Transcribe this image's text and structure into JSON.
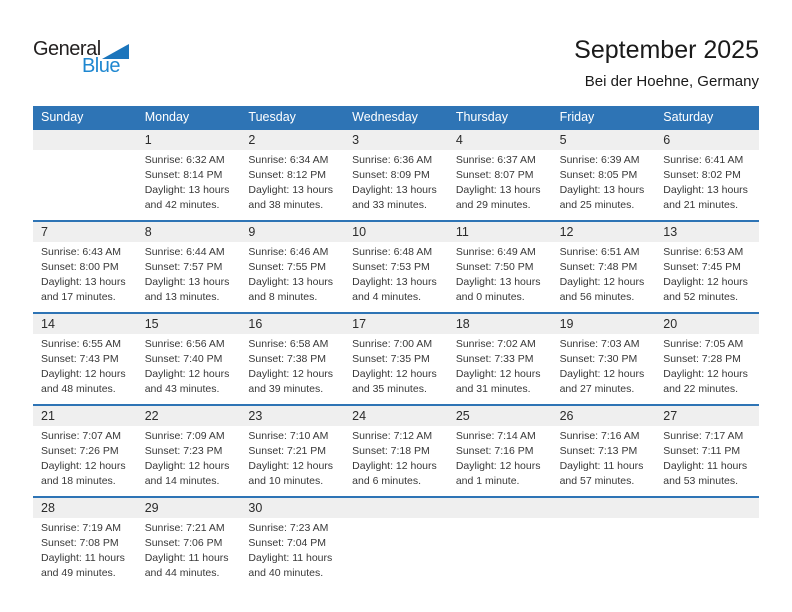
{
  "logo": {
    "general": "General",
    "blue": "Blue"
  },
  "header": {
    "title": "September 2025",
    "subtitle": "Bei der Hoehne, Germany"
  },
  "colors": {
    "header_blue": "#2e74b5",
    "number_band_gray": "#efefef",
    "logo_triangle_blue": "#1b75bc",
    "logo_text_blue": "#1e87d0",
    "detail_text": "#383838"
  },
  "weekdays": [
    "Sunday",
    "Monday",
    "Tuesday",
    "Wednesday",
    "Thursday",
    "Friday",
    "Saturday"
  ],
  "weeks": [
    [
      {
        "day": "",
        "lines": []
      },
      {
        "day": "1",
        "lines": [
          "Sunrise: 6:32 AM",
          "Sunset: 8:14 PM",
          "Daylight: 13 hours",
          "and 42 minutes."
        ]
      },
      {
        "day": "2",
        "lines": [
          "Sunrise: 6:34 AM",
          "Sunset: 8:12 PM",
          "Daylight: 13 hours",
          "and 38 minutes."
        ]
      },
      {
        "day": "3",
        "lines": [
          "Sunrise: 6:36 AM",
          "Sunset: 8:09 PM",
          "Daylight: 13 hours",
          "and 33 minutes."
        ]
      },
      {
        "day": "4",
        "lines": [
          "Sunrise: 6:37 AM",
          "Sunset: 8:07 PM",
          "Daylight: 13 hours",
          "and 29 minutes."
        ]
      },
      {
        "day": "5",
        "lines": [
          "Sunrise: 6:39 AM",
          "Sunset: 8:05 PM",
          "Daylight: 13 hours",
          "and 25 minutes."
        ]
      },
      {
        "day": "6",
        "lines": [
          "Sunrise: 6:41 AM",
          "Sunset: 8:02 PM",
          "Daylight: 13 hours",
          "and 21 minutes."
        ]
      }
    ],
    [
      {
        "day": "7",
        "lines": [
          "Sunrise: 6:43 AM",
          "Sunset: 8:00 PM",
          "Daylight: 13 hours",
          "and 17 minutes."
        ]
      },
      {
        "day": "8",
        "lines": [
          "Sunrise: 6:44 AM",
          "Sunset: 7:57 PM",
          "Daylight: 13 hours",
          "and 13 minutes."
        ]
      },
      {
        "day": "9",
        "lines": [
          "Sunrise: 6:46 AM",
          "Sunset: 7:55 PM",
          "Daylight: 13 hours",
          "and 8 minutes."
        ]
      },
      {
        "day": "10",
        "lines": [
          "Sunrise: 6:48 AM",
          "Sunset: 7:53 PM",
          "Daylight: 13 hours",
          "and 4 minutes."
        ]
      },
      {
        "day": "11",
        "lines": [
          "Sunrise: 6:49 AM",
          "Sunset: 7:50 PM",
          "Daylight: 13 hours",
          "and 0 minutes."
        ]
      },
      {
        "day": "12",
        "lines": [
          "Sunrise: 6:51 AM",
          "Sunset: 7:48 PM",
          "Daylight: 12 hours",
          "and 56 minutes."
        ]
      },
      {
        "day": "13",
        "lines": [
          "Sunrise: 6:53 AM",
          "Sunset: 7:45 PM",
          "Daylight: 12 hours",
          "and 52 minutes."
        ]
      }
    ],
    [
      {
        "day": "14",
        "lines": [
          "Sunrise: 6:55 AM",
          "Sunset: 7:43 PM",
          "Daylight: 12 hours",
          "and 48 minutes."
        ]
      },
      {
        "day": "15",
        "lines": [
          "Sunrise: 6:56 AM",
          "Sunset: 7:40 PM",
          "Daylight: 12 hours",
          "and 43 minutes."
        ]
      },
      {
        "day": "16",
        "lines": [
          "Sunrise: 6:58 AM",
          "Sunset: 7:38 PM",
          "Daylight: 12 hours",
          "and 39 minutes."
        ]
      },
      {
        "day": "17",
        "lines": [
          "Sunrise: 7:00 AM",
          "Sunset: 7:35 PM",
          "Daylight: 12 hours",
          "and 35 minutes."
        ]
      },
      {
        "day": "18",
        "lines": [
          "Sunrise: 7:02 AM",
          "Sunset: 7:33 PM",
          "Daylight: 12 hours",
          "and 31 minutes."
        ]
      },
      {
        "day": "19",
        "lines": [
          "Sunrise: 7:03 AM",
          "Sunset: 7:30 PM",
          "Daylight: 12 hours",
          "and 27 minutes."
        ]
      },
      {
        "day": "20",
        "lines": [
          "Sunrise: 7:05 AM",
          "Sunset: 7:28 PM",
          "Daylight: 12 hours",
          "and 22 minutes."
        ]
      }
    ],
    [
      {
        "day": "21",
        "lines": [
          "Sunrise: 7:07 AM",
          "Sunset: 7:26 PM",
          "Daylight: 12 hours",
          "and 18 minutes."
        ]
      },
      {
        "day": "22",
        "lines": [
          "Sunrise: 7:09 AM",
          "Sunset: 7:23 PM",
          "Daylight: 12 hours",
          "and 14 minutes."
        ]
      },
      {
        "day": "23",
        "lines": [
          "Sunrise: 7:10 AM",
          "Sunset: 7:21 PM",
          "Daylight: 12 hours",
          "and 10 minutes."
        ]
      },
      {
        "day": "24",
        "lines": [
          "Sunrise: 7:12 AM",
          "Sunset: 7:18 PM",
          "Daylight: 12 hours",
          "and 6 minutes."
        ]
      },
      {
        "day": "25",
        "lines": [
          "Sunrise: 7:14 AM",
          "Sunset: 7:16 PM",
          "Daylight: 12 hours",
          "and 1 minute."
        ]
      },
      {
        "day": "26",
        "lines": [
          "Sunrise: 7:16 AM",
          "Sunset: 7:13 PM",
          "Daylight: 11 hours",
          "and 57 minutes."
        ]
      },
      {
        "day": "27",
        "lines": [
          "Sunrise: 7:17 AM",
          "Sunset: 7:11 PM",
          "Daylight: 11 hours",
          "and 53 minutes."
        ]
      }
    ],
    [
      {
        "day": "28",
        "lines": [
          "Sunrise: 7:19 AM",
          "Sunset: 7:08 PM",
          "Daylight: 11 hours",
          "and 49 minutes."
        ]
      },
      {
        "day": "29",
        "lines": [
          "Sunrise: 7:21 AM",
          "Sunset: 7:06 PM",
          "Daylight: 11 hours",
          "and 44 minutes."
        ]
      },
      {
        "day": "30",
        "lines": [
          "Sunrise: 7:23 AM",
          "Sunset: 7:04 PM",
          "Daylight: 11 hours",
          "and 40 minutes."
        ]
      },
      {
        "day": "",
        "lines": []
      },
      {
        "day": "",
        "lines": []
      },
      {
        "day": "",
        "lines": []
      },
      {
        "day": "",
        "lines": []
      }
    ]
  ]
}
